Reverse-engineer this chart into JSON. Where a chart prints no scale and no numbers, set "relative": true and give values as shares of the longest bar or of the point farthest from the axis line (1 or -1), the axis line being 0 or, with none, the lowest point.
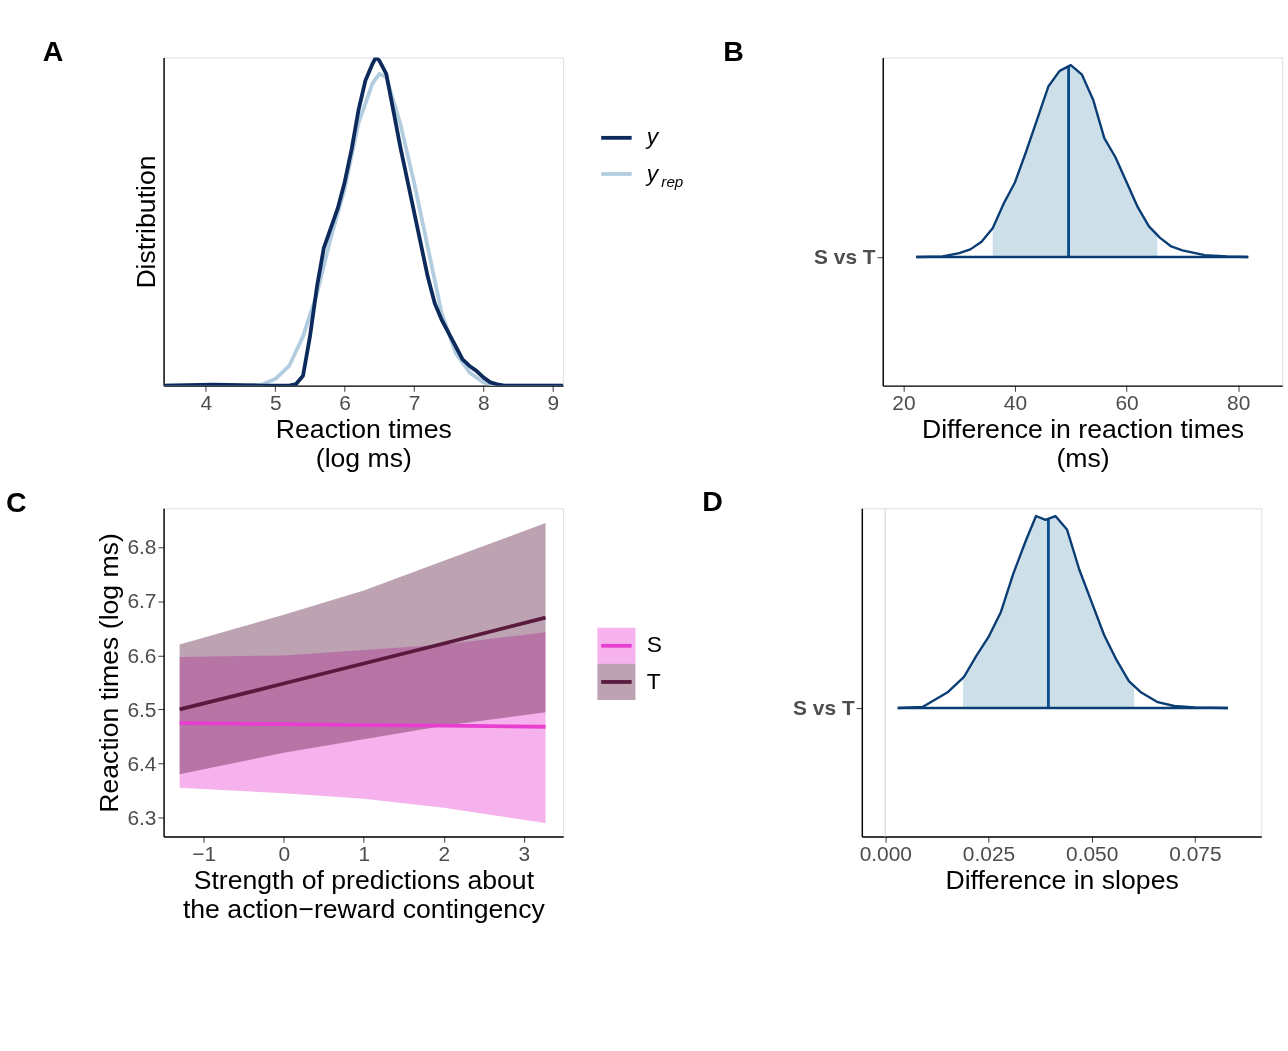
{
  "chart_data": [
    {
      "type": "line",
      "title": "A",
      "xlabel": "Reaction times\n(log ms)",
      "ylabel": "Distribution",
      "relative": true,
      "xlim": [
        3.39,
        9.15
      ],
      "xticks": [
        4,
        5,
        6,
        7,
        8,
        9
      ],
      "legend": "right",
      "grid": false,
      "series": [
        {
          "name": "y",
          "color": "#0d2a5c",
          "x": [
            3.39,
            4.1,
            4.8,
            5.2,
            5.3,
            5.4,
            5.5,
            5.6,
            5.7,
            5.8,
            5.9,
            6.0,
            6.1,
            6.2,
            6.3,
            6.4,
            6.45,
            6.5,
            6.6,
            6.7,
            6.8,
            6.9,
            7.0,
            7.1,
            7.2,
            7.3,
            7.4,
            7.5,
            7.6,
            7.7,
            7.8,
            7.9,
            8.0,
            8.1,
            8.2,
            8.3,
            9.15
          ],
          "values": [
            0,
            0.003,
            0,
            0,
            0.005,
            0.03,
            0.15,
            0.3,
            0.42,
            0.48,
            0.54,
            0.62,
            0.72,
            0.84,
            0.93,
            0.98,
            1.0,
            0.99,
            0.95,
            0.84,
            0.73,
            0.63,
            0.53,
            0.43,
            0.33,
            0.25,
            0.2,
            0.16,
            0.12,
            0.08,
            0.06,
            0.045,
            0.025,
            0.01,
            0.004,
            0,
            0
          ]
        },
        {
          "name": "y$_{rep}$",
          "color": "#b3cde0",
          "x": [
            3.39,
            4.6,
            4.8,
            5.0,
            5.2,
            5.4,
            5.6,
            5.8,
            6.0,
            6.2,
            6.4,
            6.5,
            6.6,
            6.8,
            7.0,
            7.2,
            7.4,
            7.6,
            7.8,
            8.0,
            8.2,
            9.15
          ],
          "values": [
            0,
            0,
            0.003,
            0.02,
            0.06,
            0.15,
            0.28,
            0.45,
            0.6,
            0.8,
            0.92,
            0.95,
            0.94,
            0.8,
            0.62,
            0.42,
            0.22,
            0.1,
            0.04,
            0.01,
            0,
            0
          ]
        }
      ]
    },
    {
      "type": "line",
      "title": "B",
      "xlabel": "Difference in reaction times\n(ms)",
      "relative": true,
      "xlim": [
        16.3,
        87.9
      ],
      "xticks": [
        20,
        40,
        60,
        80
      ],
      "annotations": [
        "S vs T"
      ],
      "grid": false,
      "series": [
        {
          "type": "area",
          "color": "#cde0ea",
          "x": [
            36,
            38,
            40,
            42,
            44,
            46,
            48,
            50,
            52,
            54,
            56,
            58,
            60,
            62,
            64,
            65.5
          ],
          "values": [
            0.15,
            0.28,
            0.39,
            0.55,
            0.72,
            0.89,
            0.97,
            1.0,
            0.95,
            0.82,
            0.62,
            0.52,
            0.39,
            0.26,
            0.16,
            0.11
          ]
        },
        {
          "type": "line",
          "color": "#0b3d75",
          "x": [
            22.3,
            27,
            30,
            32,
            34,
            36,
            38,
            40,
            42,
            44,
            46,
            48,
            50,
            52,
            54,
            56,
            58,
            60,
            62,
            64,
            66,
            68,
            70,
            74,
            78,
            81.8
          ],
          "values": [
            0,
            0.003,
            0.02,
            0.04,
            0.08,
            0.15,
            0.28,
            0.39,
            0.55,
            0.72,
            0.89,
            0.97,
            1.0,
            0.95,
            0.82,
            0.62,
            0.52,
            0.39,
            0.26,
            0.16,
            0.1,
            0.055,
            0.035,
            0.01,
            0.003,
            0
          ]
        }
      ],
      "ref_lines": [
        {
          "axis": "x",
          "value": 49.6,
          "color": "#0b4f8a"
        },
        {
          "axis": "y",
          "value": 0,
          "color": "#0b3d75"
        }
      ]
    },
    {
      "type": "line",
      "title": "C",
      "xlabel": "Strength of predictions about\nthe action−reward contingency",
      "ylabel": "Reaction times (log ms)",
      "xlim": [
        -1.5,
        3.49
      ],
      "xticks": [
        -1,
        0,
        1,
        2,
        3
      ],
      "ylim": [
        6.265,
        6.872
      ],
      "yticks": [
        6.3,
        6.4,
        6.5,
        6.6,
        6.7,
        6.8
      ],
      "legend": "right",
      "grid": false,
      "x": [
        -1.3,
        0,
        1,
        2,
        3.27
      ],
      "series": [
        {
          "name": "S",
          "color": "#e83fd0",
          "values": [
            6.475,
            6.473,
            6.471,
            6.47,
            6.468
          ],
          "lower": [
            6.355,
            6.345,
            6.335,
            6.318,
            6.29
          ],
          "upper": [
            6.597,
            6.6,
            6.61,
            6.62,
            6.643
          ]
        },
        {
          "name": "T",
          "color": "#5a1a3e",
          "values": [
            6.5,
            6.548,
            6.585,
            6.622,
            6.67
          ],
          "lower": [
            6.38,
            6.42,
            6.445,
            6.47,
            6.495
          ],
          "upper": [
            6.62,
            6.675,
            6.72,
            6.775,
            6.845
          ]
        }
      ]
    },
    {
      "type": "line",
      "title": "D",
      "xlabel": "Difference in slopes",
      "relative": true,
      "xlim": [
        -0.0057,
        0.0911
      ],
      "xticks": [
        {
          "value": 0,
          "label": "0.000"
        },
        0.025,
        {
          "value": 0.05,
          "label": "0.050"
        },
        0.075
      ],
      "annotations": [
        "S vs T"
      ],
      "grid": false,
      "series": [
        {
          "type": "area",
          "color": "#cde0ea",
          "x": [
            0.0188,
            0.022,
            0.025,
            0.028,
            0.031,
            0.034,
            0.0365,
            0.0388,
            0.0412,
            0.044,
            0.047,
            0.05,
            0.053,
            0.056,
            0.059,
            0.0603
          ],
          "values": [
            0.16,
            0.27,
            0.37,
            0.5,
            0.7,
            0.87,
            1.0,
            0.98,
            1.0,
            0.93,
            0.72,
            0.55,
            0.38,
            0.25,
            0.14,
            0.11
          ]
        },
        {
          "type": "line",
          "color": "#0b3d75",
          "x": [
            0.003,
            0.009,
            0.015,
            0.019,
            0.022,
            0.025,
            0.028,
            0.031,
            0.034,
            0.0365,
            0.0388,
            0.0412,
            0.044,
            0.047,
            0.05,
            0.053,
            0.056,
            0.059,
            0.062,
            0.066,
            0.07,
            0.075,
            0.083
          ],
          "values": [
            0,
            0.005,
            0.08,
            0.16,
            0.27,
            0.37,
            0.5,
            0.7,
            0.87,
            1.0,
            0.98,
            1.0,
            0.93,
            0.72,
            0.55,
            0.38,
            0.25,
            0.14,
            0.08,
            0.03,
            0.01,
            0.002,
            0
          ]
        }
      ],
      "ref_lines": [
        {
          "axis": "x",
          "value": 0.0395,
          "color": "#0b4f8a"
        },
        {
          "axis": "x",
          "value": 0,
          "color": "#dddddd"
        },
        {
          "axis": "y",
          "value": 0,
          "color": "#0b3d75"
        }
      ]
    }
  ]
}
